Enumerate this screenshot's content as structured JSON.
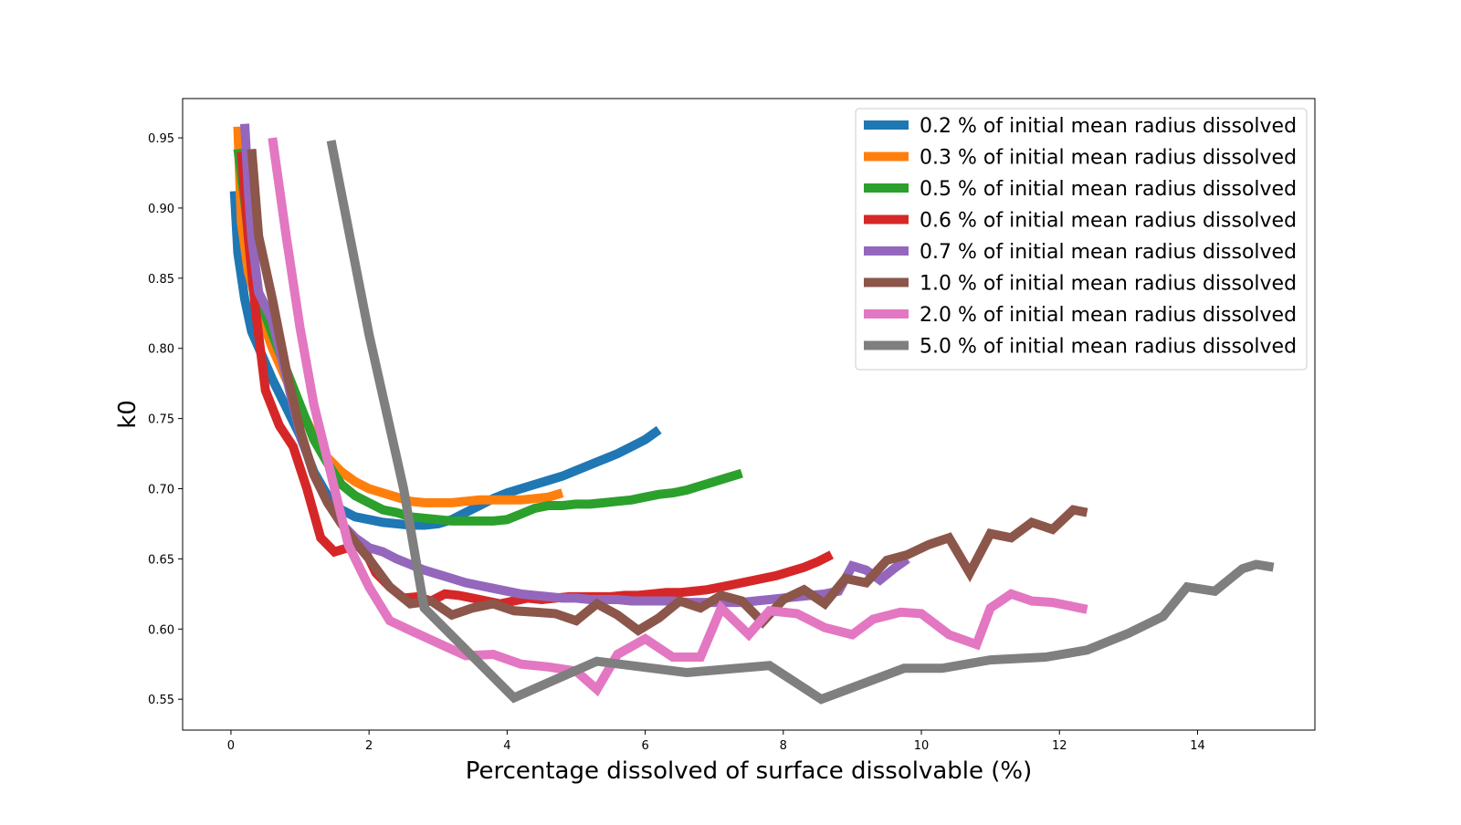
{
  "chart_data": {
    "type": "line",
    "title": "",
    "xlabel": "Percentage dissolved of surface dissolvable (%)",
    "ylabel": "k0",
    "xlim": [
      -0.7,
      15.7
    ],
    "ylim": [
      0.528,
      0.978
    ],
    "xticks": [
      0,
      2,
      4,
      6,
      8,
      10,
      12,
      14
    ],
    "yticks": [
      0.55,
      0.6,
      0.65,
      0.7,
      0.75,
      0.8,
      0.85,
      0.9,
      0.95
    ],
    "xtick_labels": [
      "0",
      "2",
      "4",
      "6",
      "8",
      "10",
      "12",
      "14"
    ],
    "ytick_labels": [
      "0.55",
      "0.60",
      "0.65",
      "0.70",
      "0.75",
      "0.80",
      "0.85",
      "0.90",
      "0.95"
    ],
    "grid": false,
    "legend_position": "top-right",
    "series": [
      {
        "name": "0.2 % of initial mean radius dissolved",
        "color": "#1f77b4",
        "x": [
          0.05,
          0.1,
          0.2,
          0.3,
          0.45,
          0.6,
          0.8,
          1.0,
          1.2,
          1.4,
          1.6,
          1.8,
          2.0,
          2.2,
          2.4,
          2.6,
          2.8,
          3.0,
          3.2,
          3.4,
          3.6,
          3.8,
          4.0,
          4.2,
          4.4,
          4.6,
          4.8,
          5.0,
          5.2,
          5.4,
          5.6,
          5.8,
          6.0,
          6.2
        ],
        "y": [
          0.912,
          0.868,
          0.835,
          0.812,
          0.795,
          0.778,
          0.758,
          0.738,
          0.712,
          0.695,
          0.685,
          0.68,
          0.678,
          0.676,
          0.675,
          0.674,
          0.674,
          0.675,
          0.678,
          0.683,
          0.688,
          0.693,
          0.697,
          0.7,
          0.703,
          0.706,
          0.709,
          0.713,
          0.717,
          0.721,
          0.725,
          0.73,
          0.735,
          0.742
        ]
      },
      {
        "name": "0.3 % of initial mean radius dissolved",
        "color": "#ff7f0e",
        "x": [
          0.1,
          0.15,
          0.25,
          0.4,
          0.6,
          0.8,
          1.0,
          1.2,
          1.4,
          1.6,
          1.8,
          2.0,
          2.2,
          2.4,
          2.6,
          2.8,
          3.0,
          3.2,
          3.4,
          3.6,
          3.8,
          4.0,
          4.2,
          4.4,
          4.6,
          4.8
        ],
        "y": [
          0.958,
          0.89,
          0.855,
          0.828,
          0.8,
          0.778,
          0.758,
          0.738,
          0.722,
          0.712,
          0.705,
          0.7,
          0.697,
          0.694,
          0.691,
          0.69,
          0.69,
          0.69,
          0.691,
          0.692,
          0.692,
          0.692,
          0.692,
          0.693,
          0.694,
          0.697
        ]
      },
      {
        "name": "0.5 % of initial mean radius dissolved",
        "color": "#2ca02c",
        "x": [
          0.1,
          0.2,
          0.3,
          0.45,
          0.6,
          0.8,
          1.0,
          1.2,
          1.4,
          1.6,
          1.8,
          2.0,
          2.2,
          2.4,
          2.6,
          2.8,
          3.0,
          3.2,
          3.4,
          3.6,
          3.8,
          4.0,
          4.2,
          4.4,
          4.6,
          4.8,
          5.0,
          5.2,
          5.4,
          5.6,
          5.8,
          6.0,
          6.2,
          6.4,
          6.6,
          6.8,
          7.0,
          7.2,
          7.4
        ],
        "y": [
          0.942,
          0.905,
          0.86,
          0.83,
          0.81,
          0.785,
          0.76,
          0.735,
          0.718,
          0.703,
          0.695,
          0.69,
          0.685,
          0.683,
          0.68,
          0.679,
          0.678,
          0.677,
          0.677,
          0.677,
          0.677,
          0.678,
          0.682,
          0.686,
          0.688,
          0.688,
          0.689,
          0.689,
          0.69,
          0.691,
          0.692,
          0.694,
          0.696,
          0.697,
          0.699,
          0.702,
          0.705,
          0.708,
          0.711
        ]
      },
      {
        "name": "0.6 % of initial mean radius dissolved",
        "color": "#d62728",
        "x": [
          0.15,
          0.25,
          0.35,
          0.5,
          0.7,
          0.9,
          1.1,
          1.3,
          1.5,
          1.7,
          1.9,
          2.1,
          2.3,
          2.5,
          2.7,
          2.9,
          3.1,
          3.3,
          3.5,
          3.7,
          3.9,
          4.1,
          4.3,
          4.5,
          4.7,
          4.9,
          5.1,
          5.3,
          5.5,
          5.7,
          5.9,
          6.1,
          6.3,
          6.5,
          6.7,
          6.9,
          7.1,
          7.3,
          7.5,
          7.7,
          7.9,
          8.1,
          8.3,
          8.5,
          8.7
        ],
        "y": [
          0.94,
          0.88,
          0.83,
          0.77,
          0.745,
          0.73,
          0.7,
          0.665,
          0.655,
          0.658,
          0.66,
          0.64,
          0.63,
          0.622,
          0.623,
          0.62,
          0.625,
          0.624,
          0.622,
          0.62,
          0.618,
          0.62,
          0.622,
          0.621,
          0.622,
          0.623,
          0.623,
          0.623,
          0.623,
          0.624,
          0.624,
          0.625,
          0.626,
          0.626,
          0.627,
          0.628,
          0.63,
          0.632,
          0.634,
          0.636,
          0.638,
          0.641,
          0.644,
          0.648,
          0.653
        ]
      },
      {
        "name": "0.7 % of initial mean radius dissolved",
        "color": "#9467bd",
        "x": [
          0.2,
          0.25,
          0.3,
          0.4,
          0.6,
          0.8,
          1.0,
          1.2,
          1.4,
          1.6,
          1.8,
          2.0,
          2.2,
          2.4,
          2.6,
          2.8,
          3.0,
          3.2,
          3.4,
          3.6,
          3.8,
          4.0,
          4.2,
          4.4,
          4.6,
          4.8,
          5.0,
          5.2,
          5.4,
          5.6,
          5.8,
          6.0,
          6.2,
          6.4,
          6.6,
          6.8,
          7.0,
          7.2,
          7.4,
          7.6,
          7.8,
          8.0,
          8.2,
          8.4,
          8.6,
          8.8,
          9.0,
          9.2,
          9.4,
          9.6,
          9.8
        ],
        "y": [
          0.96,
          0.915,
          0.88,
          0.84,
          0.82,
          0.78,
          0.74,
          0.71,
          0.69,
          0.675,
          0.665,
          0.658,
          0.655,
          0.65,
          0.646,
          0.642,
          0.639,
          0.636,
          0.633,
          0.631,
          0.629,
          0.627,
          0.625,
          0.624,
          0.623,
          0.622,
          0.622,
          0.621,
          0.621,
          0.621,
          0.62,
          0.62,
          0.62,
          0.62,
          0.619,
          0.619,
          0.619,
          0.619,
          0.619,
          0.62,
          0.621,
          0.622,
          0.623,
          0.624,
          0.625,
          0.627,
          0.645,
          0.642,
          0.635,
          0.643,
          0.65
        ]
      },
      {
        "name": "1.0 % of initial mean radius dissolved",
        "color": "#8c564b",
        "x": [
          0.3,
          0.4,
          0.6,
          0.8,
          1.0,
          1.2,
          1.4,
          1.6,
          1.8,
          2.0,
          2.3,
          2.6,
          2.9,
          3.2,
          3.5,
          3.8,
          4.1,
          4.4,
          4.7,
          5.0,
          5.3,
          5.6,
          5.9,
          6.2,
          6.5,
          6.8,
          7.1,
          7.4,
          7.7,
          8.0,
          8.3,
          8.6,
          8.9,
          9.2,
          9.5,
          9.8,
          10.1,
          10.4,
          10.7,
          11.0,
          11.3,
          11.6,
          11.9,
          12.2,
          12.4
        ],
        "y": [
          0.942,
          0.88,
          0.835,
          0.785,
          0.742,
          0.71,
          0.69,
          0.675,
          0.662,
          0.65,
          0.63,
          0.618,
          0.62,
          0.61,
          0.615,
          0.618,
          0.613,
          0.612,
          0.611,
          0.606,
          0.618,
          0.61,
          0.599,
          0.608,
          0.62,
          0.615,
          0.624,
          0.62,
          0.605,
          0.621,
          0.628,
          0.618,
          0.636,
          0.633,
          0.649,
          0.653,
          0.66,
          0.665,
          0.64,
          0.668,
          0.665,
          0.676,
          0.671,
          0.685,
          0.683
        ]
      },
      {
        "name": "2.0 % of initial mean radius dissolved",
        "color": "#e377c2",
        "x": [
          0.6,
          0.8,
          1.0,
          1.2,
          1.4,
          1.7,
          2.0,
          2.3,
          2.6,
          3.0,
          3.4,
          3.8,
          4.2,
          4.6,
          5.0,
          5.3,
          5.6,
          6.0,
          6.4,
          6.8,
          7.1,
          7.5,
          7.8,
          8.2,
          8.6,
          9.0,
          9.3,
          9.7,
          10.0,
          10.4,
          10.8,
          11.0,
          11.3,
          11.6,
          11.9,
          12.1,
          12.4
        ],
        "y": [
          0.95,
          0.88,
          0.815,
          0.76,
          0.72,
          0.66,
          0.63,
          0.606,
          0.599,
          0.59,
          0.581,
          0.582,
          0.575,
          0.573,
          0.57,
          0.557,
          0.582,
          0.593,
          0.58,
          0.58,
          0.615,
          0.596,
          0.613,
          0.611,
          0.601,
          0.596,
          0.607,
          0.612,
          0.611,
          0.596,
          0.589,
          0.615,
          0.625,
          0.62,
          0.619,
          0.617,
          0.614
        ]
      },
      {
        "name": "5.0 % of initial mean radius dissolved",
        "color": "#7f7f7f",
        "x": [
          1.45,
          2.0,
          2.5,
          2.8,
          4.1,
          5.3,
          6.6,
          7.8,
          8.55,
          9.75,
          10.3,
          11.0,
          11.8,
          12.4,
          13.0,
          13.5,
          13.85,
          14.25,
          14.65,
          14.85,
          15.1
        ],
        "y": [
          0.948,
          0.81,
          0.7,
          0.615,
          0.551,
          0.577,
          0.569,
          0.574,
          0.55,
          0.572,
          0.572,
          0.578,
          0.58,
          0.585,
          0.597,
          0.609,
          0.63,
          0.627,
          0.643,
          0.646,
          0.644
        ]
      }
    ]
  }
}
